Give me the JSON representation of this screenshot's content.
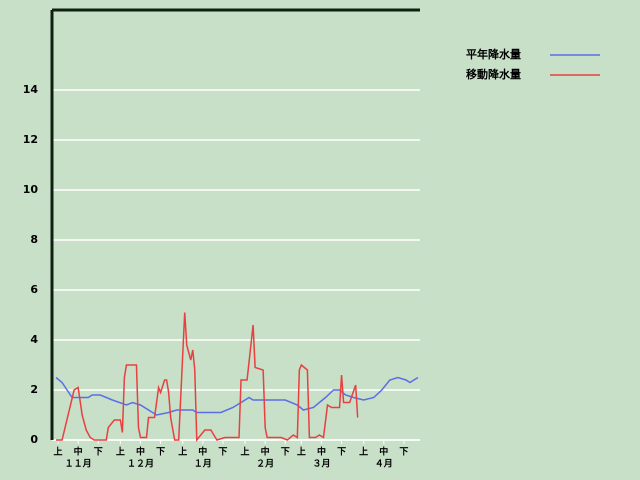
{
  "chart_data": {
    "type": "line",
    "ylim": [
      0,
      17.2
    ],
    "yticks": [
      0,
      2,
      4,
      6,
      8,
      10,
      12,
      14
    ],
    "grid": true,
    "xlim": [
      0,
      183
    ],
    "xticks": [
      {
        "value": 3,
        "label": "上"
      },
      {
        "value": 13,
        "label": "中"
      },
      {
        "value": 23,
        "label": "下"
      },
      {
        "value": 34,
        "label": "上"
      },
      {
        "value": 44,
        "label": "中"
      },
      {
        "value": 54,
        "label": "下"
      },
      {
        "value": 65,
        "label": "上"
      },
      {
        "value": 75,
        "label": "中"
      },
      {
        "value": 85,
        "label": "下"
      },
      {
        "value": 96,
        "label": "上"
      },
      {
        "value": 106,
        "label": "中"
      },
      {
        "value": 116,
        "label": "下"
      },
      {
        "value": 124,
        "label": "上"
      },
      {
        "value": 134,
        "label": "中"
      },
      {
        "value": 144,
        "label": "下"
      },
      {
        "value": 155,
        "label": "上"
      },
      {
        "value": 165,
        "label": "中"
      },
      {
        "value": 175,
        "label": "下"
      }
    ],
    "x_month_labels": [
      {
        "value": 13,
        "label": "１１月"
      },
      {
        "value": 44,
        "label": "１２月"
      },
      {
        "value": 75,
        "label": "１月"
      },
      {
        "value": 106,
        "label": "２月"
      },
      {
        "value": 134,
        "label": "３月"
      },
      {
        "value": 165,
        "label": "４月"
      }
    ],
    "series": [
      {
        "name": "平年降水量",
        "color": "#5a6ee6",
        "x": [
          2,
          5,
          10,
          18,
          20,
          24,
          30,
          37,
          40,
          44,
          52,
          58,
          62,
          70,
          72,
          84,
          90,
          96,
          98,
          100,
          116,
          122,
          125,
          130,
          136,
          140,
          143,
          146,
          150,
          155,
          160,
          164,
          168,
          172,
          176,
          178,
          180,
          182
        ],
        "values": [
          2.5,
          2.3,
          1.7,
          1.7,
          1.8,
          1.8,
          1.6,
          1.4,
          1.5,
          1.4,
          1.0,
          1.1,
          1.2,
          1.2,
          1.1,
          1.1,
          1.3,
          1.6,
          1.7,
          1.6,
          1.6,
          1.4,
          1.2,
          1.3,
          1.7,
          2.0,
          2.0,
          1.8,
          1.7,
          1.6,
          1.7,
          2.0,
          2.4,
          2.5,
          2.4,
          2.3,
          2.4,
          2.5
        ]
      },
      {
        "name": "移動降水量",
        "color": "#e84040",
        "x": [
          2,
          5,
          11,
          13,
          15,
          17,
          19,
          21,
          27,
          28,
          31,
          34,
          35,
          36,
          37,
          42,
          43,
          44,
          47,
          48,
          51,
          53,
          54,
          56,
          57,
          58,
          59,
          61,
          63,
          66,
          67,
          69,
          70,
          71,
          72,
          76,
          79,
          82,
          86,
          93,
          94,
          97,
          100,
          101,
          105,
          106,
          107,
          114,
          117,
          120,
          122,
          123,
          124,
          127,
          128,
          131,
          133,
          135,
          137,
          139,
          143,
          144,
          145,
          148,
          151,
          152
        ],
        "values": [
          0,
          0,
          2.0,
          2.1,
          1.0,
          0.4,
          0.1,
          0,
          0,
          0.5,
          0.8,
          0.8,
          0.3,
          2.5,
          3.0,
          3.0,
          0.5,
          0.1,
          0.1,
          0.9,
          0.9,
          2.1,
          1.9,
          2.4,
          2.4,
          1.9,
          0.9,
          0,
          0,
          5.1,
          3.8,
          3.2,
          3.6,
          2.8,
          0,
          0.4,
          0.4,
          0,
          0.1,
          0.1,
          2.4,
          2.4,
          4.6,
          2.9,
          2.8,
          0.5,
          0.1,
          0.1,
          0,
          0.2,
          0.1,
          2.8,
          3.0,
          2.8,
          0.1,
          0.1,
          0.2,
          0.1,
          1.4,
          1.3,
          1.3,
          2.6,
          1.5,
          1.5,
          2.2,
          0.9
        ]
      }
    ]
  }
}
